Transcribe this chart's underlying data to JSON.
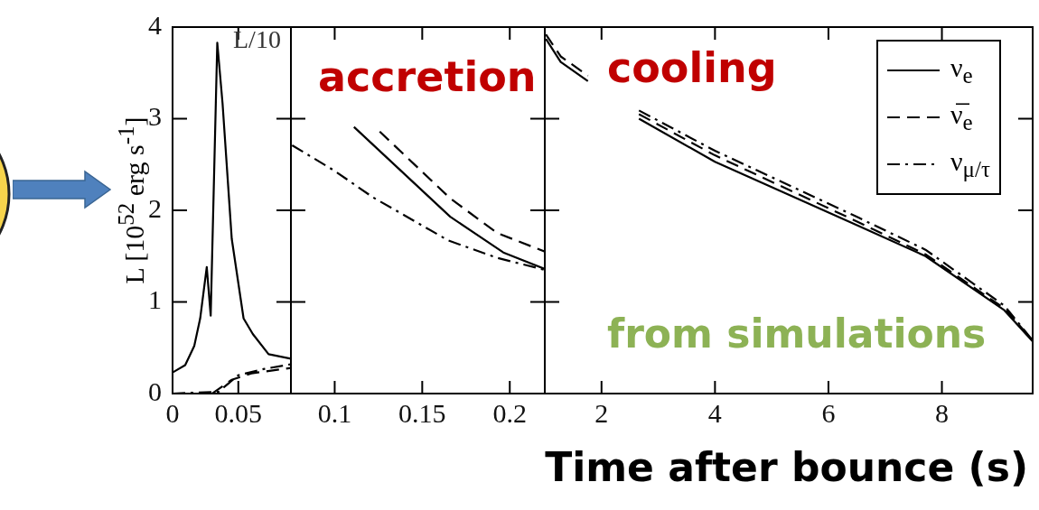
{
  "chart_data": [
    {
      "type": "line",
      "ylabel": "L [10$^{52}$ erg s$^{-1}$]",
      "annotations": [
        "L/10"
      ],
      "xlim": [
        0,
        0.09
      ],
      "xticks": [
        0,
        0.05
      ],
      "ylim": [
        0,
        4
      ],
      "yticks": [
        0,
        1,
        2,
        3,
        4
      ],
      "tick_labels": true,
      "series": [
        {
          "color": "#000000",
          "line_style": "solid",
          "x": [
            0,
            0.0096,
            0.0165,
            0.021,
            0.026,
            0.029,
            0.034,
            0.038,
            0.045,
            0.054,
            0.061,
            0.073,
            0.09
          ],
          "values": [
            0.23,
            0.31,
            0.52,
            0.82,
            1.38,
            0.85,
            3.83,
            3.17,
            1.69,
            0.82,
            0.65,
            0.43,
            0.38
          ]
        },
        {
          "color": "#000000",
          "line_style": "dashed",
          "x": [
            0,
            0.03,
            0.045,
            0.06,
            0.09
          ],
          "values": [
            0,
            0,
            0.15,
            0.22,
            0.28
          ]
        },
        {
          "color": "#000000",
          "line_style": "dashdot",
          "x": [
            0,
            0.035,
            0.05,
            0.07,
            0.09
          ],
          "values": [
            0,
            0.02,
            0.2,
            0.27,
            0.32
          ]
        }
      ]
    },
    {
      "type": "line",
      "annotations": [
        "accretion"
      ],
      "xlim": [
        0.075,
        0.22
      ],
      "xticks": [
        0.1,
        0.15,
        0.2
      ],
      "ylim": [
        0,
        4
      ],
      "yticks": [
        0,
        1,
        2,
        3,
        4
      ],
      "tick_labels": "x",
      "series": [
        {
          "color": "#000000",
          "line_style": "solid",
          "x": [
            0.111,
            0.166,
            0.1963,
            0.22
          ],
          "values": [
            2.91,
            1.93,
            1.54,
            1.36
          ]
        },
        {
          "color": "#000000",
          "line_style": "dashed",
          "x": [
            0.1257,
            0.166,
            0.193,
            0.22
          ],
          "values": [
            2.86,
            2.13,
            1.75,
            1.55
          ]
        },
        {
          "color": "#000000",
          "line_style": "dashdot",
          "x": [
            0.0757,
            0.1,
            0.122,
            0.165,
            0.193,
            0.22
          ],
          "values": [
            2.71,
            2.43,
            2.14,
            1.67,
            1.48,
            1.35
          ]
        }
      ]
    },
    {
      "type": "line",
      "xlabel": "Time after bounce (s)",
      "annotations": [
        "cooling",
        "from simulations"
      ],
      "xlim": [
        1,
        9.6
      ],
      "xticks": [
        2,
        4,
        6,
        8
      ],
      "ylim": [
        0,
        4
      ],
      "yticks": [
        0,
        1,
        2,
        3,
        4
      ],
      "tick_labels": "x",
      "legend": "top right",
      "series": [
        {
          "name": "ν$_{e}$",
          "color": "#000000",
          "line_style": "solid",
          "x": [
            1.02,
            1.28,
            1.76,
            2.2,
            2.66,
            4.0,
            6.53,
            7.71,
            9.1,
            9.6
          ],
          "values": [
            3.87,
            3.62,
            3.41,
            null,
            3.0,
            2.53,
            1.83,
            1.5,
            0.91,
            0.57
          ]
        },
        {
          "name": "ν̅$_{e}$",
          "color": "#000000",
          "line_style": "dashed",
          "x": [
            1.02,
            1.28,
            1.76,
            2.2,
            2.66,
            4.0,
            6.53,
            7.71,
            9.1,
            9.6
          ],
          "values": [
            3.92,
            3.68,
            3.47,
            null,
            3.05,
            2.6,
            1.87,
            1.52,
            0.93,
            0.58
          ]
        },
        {
          "name": "ν$_{μ/τ}$",
          "color": "#000000",
          "line_style": "dashdot",
          "x": [
            2.66,
            4.0,
            6.53,
            7.71,
            9.1,
            9.6
          ],
          "values": [
            3.09,
            2.65,
            1.92,
            1.57,
            0.96,
            0.58
          ]
        }
      ]
    }
  ]
}
